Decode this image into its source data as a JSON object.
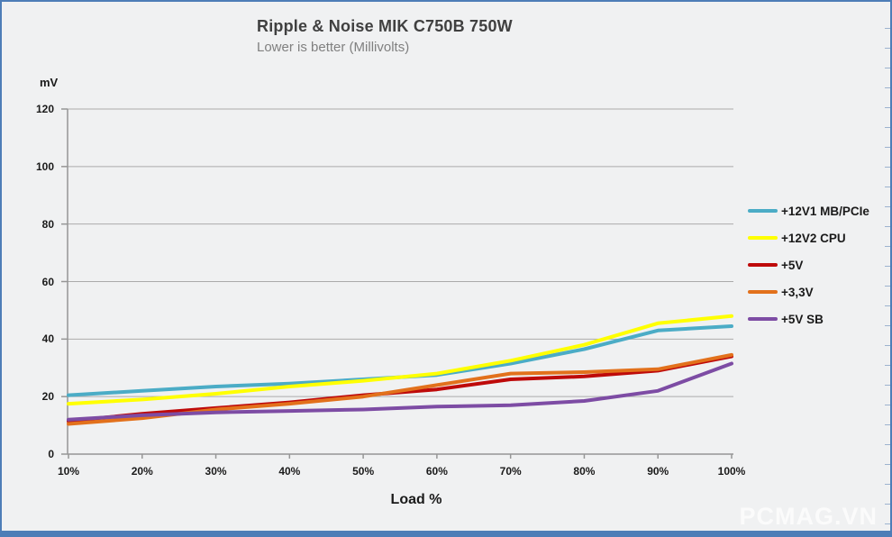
{
  "page": {
    "watermark": "PCMAG.VN",
    "frame_color": "#4d7db7",
    "background": "#f0f1f2"
  },
  "chart_data": {
    "type": "line",
    "title": "Ripple & Noise MIK C750B 750W",
    "subtitle": "Lower is better (Millivolts)",
    "xlabel": "Load %",
    "ylabel": "mV",
    "ylim": [
      0,
      120
    ],
    "ytick_labels": [
      "0",
      "20",
      "40",
      "60",
      "80",
      "100",
      "120"
    ],
    "grid": true,
    "legend_position": "right",
    "categories": [
      "10%",
      "20%",
      "30%",
      "40%",
      "50%",
      "60%",
      "70%",
      "80%",
      "90%",
      "100%"
    ],
    "series": [
      {
        "name": "+12V1 MB/PCIe",
        "color": "#4BACC6",
        "values": [
          20.5,
          22,
          23.5,
          24.5,
          26,
          27.5,
          31.5,
          36.5,
          43,
          44.5
        ]
      },
      {
        "name": "+12V2 CPU",
        "color": "#FFFF00",
        "values": [
          17.5,
          19,
          21,
          23.5,
          25.5,
          28,
          32.5,
          38,
          45.5,
          48
        ]
      },
      {
        "name": "+5V",
        "color": "#BE0A0A",
        "values": [
          11.5,
          14,
          16,
          18,
          20.5,
          22.5,
          26,
          27,
          29,
          34
        ]
      },
      {
        "name": "+3,3V",
        "color": "#E2711C",
        "values": [
          10.5,
          12.5,
          15.5,
          17.5,
          20,
          24,
          28,
          28.5,
          29.5,
          34.5
        ]
      },
      {
        "name": "+5V SB",
        "color": "#7D4CA4",
        "values": [
          12,
          13.5,
          14.5,
          15,
          15.5,
          16.5,
          17,
          18.5,
          22,
          31.5
        ]
      }
    ],
    "gridline_color": "#ababab",
    "axis_color": "#969696"
  }
}
